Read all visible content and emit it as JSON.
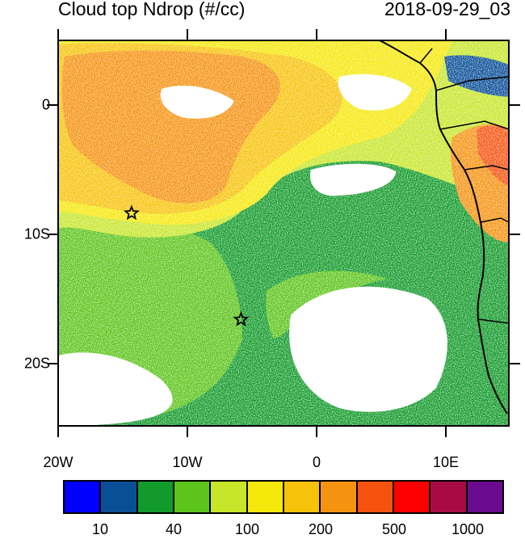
{
  "header": {
    "title": "Cloud top Ndrop (#/cc)",
    "timestamp": "2018-09-29_03"
  },
  "map": {
    "x_tick_labels": [
      "20W",
      "10W",
      "0",
      "10E"
    ],
    "y_tick_labels": [
      "0",
      "10S",
      "20S"
    ],
    "markers": [
      {
        "name": "star-marker-north",
        "lon": -14.3,
        "lat": -8.0
      },
      {
        "name": "star-marker-south",
        "lon": -5.8,
        "lat": -16.0
      }
    ],
    "lon_range": [
      -20,
      15
    ],
    "lat_range": [
      -24,
      5
    ],
    "palette": {
      "blue": "#0000ff",
      "darkblue": "#0a4f96",
      "green": "#129a2a",
      "lightgreen": "#5cc41a",
      "yellowgreen": "#c7e62a",
      "yellow": "#f5e80a",
      "gold": "#f7c30a",
      "orange": "#f59210",
      "red_orange": "#f5520f",
      "land_line": "#000000"
    }
  },
  "colorbar": {
    "colors": [
      "#0000ff",
      "#0a4f96",
      "#129a2a",
      "#5cc41a",
      "#c7e62a",
      "#f5e80a",
      "#f7c30a",
      "#f59210",
      "#f5520f",
      "#ff0000",
      "#a80a44",
      "#6a0a8f"
    ],
    "labels": [
      "10",
      "40",
      "100",
      "200",
      "500",
      "1000"
    ]
  }
}
